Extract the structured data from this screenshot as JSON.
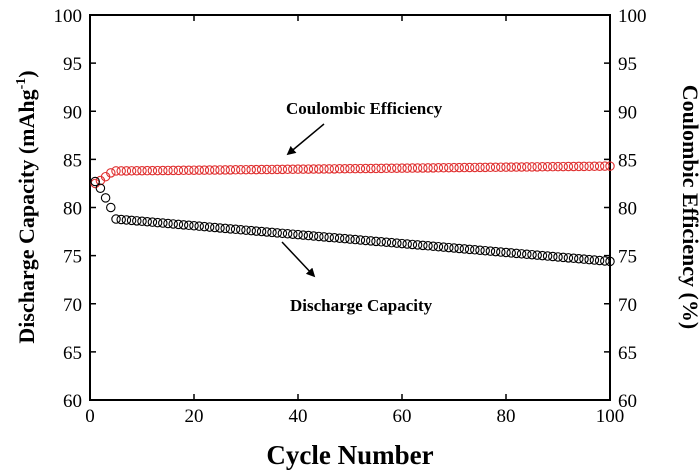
{
  "chart_data": {
    "type": "scatter",
    "x_label": "Cycle Number",
    "y_label_left": "Discharge Capacity (mAhg",
    "y_label_left_sup": "-1",
    "y_label_left_close": ")",
    "y_label_right": "Coulombic Efficiency (%)",
    "xlim": [
      0,
      100
    ],
    "ylim_left": [
      60,
      100
    ],
    "ylim_right": [
      60,
      100
    ],
    "x_ticks": [
      0,
      20,
      40,
      60,
      80,
      100
    ],
    "y_ticks": [
      60,
      65,
      70,
      75,
      80,
      85,
      90,
      95,
      100
    ],
    "series": [
      {
        "name": "Coulombic Efficiency",
        "axis": "right",
        "marker": "open-circle",
        "color": "#e03030",
        "x": [
          1,
          2,
          3,
          4,
          5,
          6,
          100
        ],
        "y": [
          82.5,
          82.8,
          83.2,
          83.6,
          83.8,
          83.8,
          84.3
        ],
        "trend": "linear from cycle 6 to cycle 100"
      },
      {
        "name": "Discharge Capacity",
        "axis": "left",
        "marker": "open-circle",
        "color": "#000000",
        "x": [
          1,
          2,
          3,
          4,
          5,
          100
        ],
        "y": [
          82.7,
          82.0,
          81.0,
          80.0,
          78.8,
          74.4
        ],
        "trend": "linear from cycle 5 to cycle 100"
      }
    ],
    "annotations": [
      {
        "text": "Coulombic Efficiency",
        "points_to": "Coulombic Efficiency"
      },
      {
        "text": "Discharge Capacity",
        "points_to": "Discharge Capacity"
      }
    ]
  }
}
